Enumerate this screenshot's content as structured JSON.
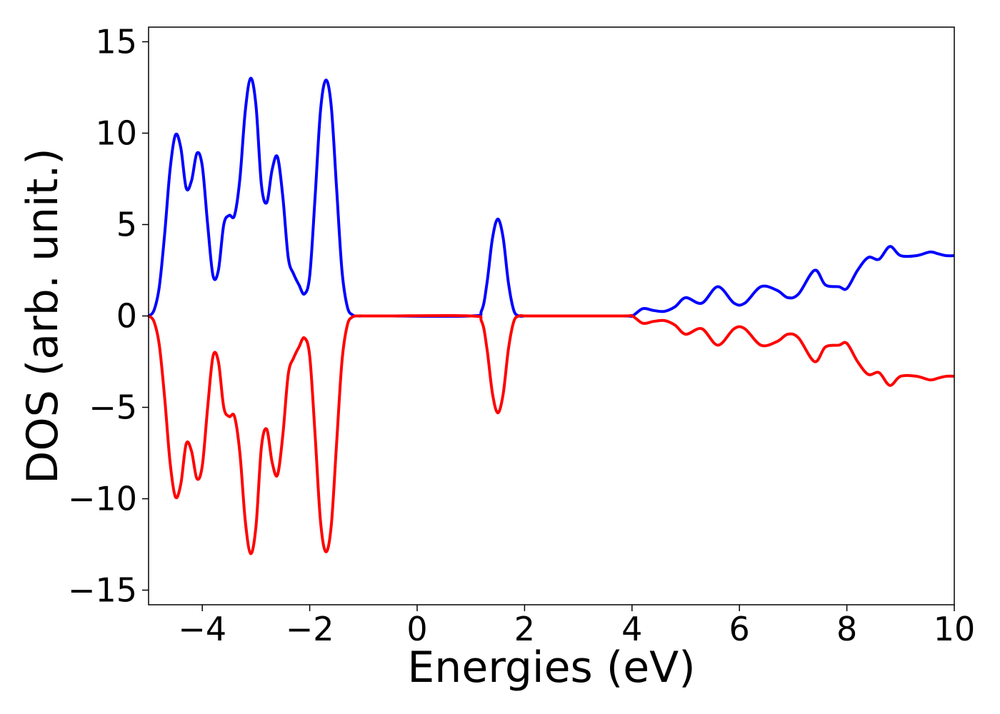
{
  "chart_data": {
    "type": "line",
    "xlabel": "Energies (eV)",
    "ylabel": "DOS (arb. unit.)",
    "xlim": [
      -5,
      10
    ],
    "ylim": [
      -15.8,
      15.8
    ],
    "xticks": [
      -4,
      -2,
      0,
      2,
      4,
      6,
      8,
      10
    ],
    "yticks": [
      -15,
      -10,
      -5,
      0,
      5,
      10,
      15
    ],
    "xtick_labels": [
      "−4",
      "−2",
      "0",
      "2",
      "4",
      "6",
      "8",
      "10"
    ],
    "ytick_labels": [
      "−15",
      "−10",
      "−5",
      "0",
      "5",
      "10",
      "15"
    ],
    "grid": false,
    "legend": "none",
    "series": [
      {
        "color": "#0000ff",
        "x": [
          -5.0,
          -4.9,
          -4.8,
          -4.7,
          -4.6,
          -4.5,
          -4.4,
          -4.3,
          -4.2,
          -4.1,
          -4.0,
          -3.9,
          -3.8,
          -3.7,
          -3.6,
          -3.5,
          -3.4,
          -3.3,
          -3.2,
          -3.1,
          -3.0,
          -2.9,
          -2.8,
          -2.7,
          -2.6,
          -2.5,
          -2.4,
          -2.3,
          -2.2,
          -2.1,
          -2.0,
          -1.9,
          -1.8,
          -1.7,
          -1.6,
          -1.5,
          -1.4,
          -1.3,
          -1.2,
          -1.1,
          -1.0,
          -0.9,
          -0.8,
          -0.7,
          -0.6,
          -0.5,
          1.0,
          1.2,
          1.3,
          1.4,
          1.5,
          1.6,
          1.7,
          1.8,
          1.9,
          2.0,
          2.1,
          2.2,
          3.8,
          4.0,
          4.2,
          4.4,
          4.6,
          4.8,
          5.0,
          5.3,
          5.6,
          5.9,
          6.1,
          6.4,
          6.7,
          6.9,
          7.1,
          7.4,
          7.6,
          7.85,
          8.0,
          8.2,
          8.4,
          8.6,
          8.8,
          9.0,
          9.3,
          9.55,
          9.7,
          9.85,
          10.0
        ],
        "y": [
          0.0,
          0.3,
          1.6,
          4.5,
          8.0,
          9.9,
          9.2,
          7.0,
          7.4,
          8.9,
          8.2,
          5.0,
          2.2,
          2.5,
          5.0,
          5.5,
          5.5,
          7.5,
          11.2,
          13.0,
          11.5,
          7.2,
          6.2,
          8.0,
          8.7,
          6.5,
          3.2,
          2.3,
          1.7,
          1.2,
          2.2,
          6.5,
          11.2,
          12.9,
          11.5,
          7.0,
          2.5,
          0.5,
          0.05,
          0.0,
          0.0,
          0.0,
          0.0,
          0.0,
          0.0,
          0.0,
          0.0,
          0.3,
          1.8,
          4.2,
          5.3,
          4.3,
          1.8,
          0.3,
          0.0,
          0.0,
          0.0,
          0.0,
          0.0,
          0.0,
          0.4,
          0.3,
          0.25,
          0.5,
          1.0,
          0.7,
          1.6,
          0.7,
          0.7,
          1.6,
          1.4,
          1.0,
          1.2,
          2.5,
          1.7,
          1.6,
          1.5,
          2.5,
          3.2,
          3.1,
          3.8,
          3.3,
          3.3,
          3.5,
          3.4,
          3.3,
          3.3
        ]
      },
      {
        "color": "#ff0000",
        "x": [
          -5.0,
          -4.9,
          -4.8,
          -4.7,
          -4.6,
          -4.5,
          -4.4,
          -4.3,
          -4.2,
          -4.1,
          -4.0,
          -3.9,
          -3.8,
          -3.7,
          -3.6,
          -3.5,
          -3.4,
          -3.3,
          -3.2,
          -3.1,
          -3.0,
          -2.9,
          -2.8,
          -2.7,
          -2.6,
          -2.5,
          -2.4,
          -2.3,
          -2.2,
          -2.1,
          -2.0,
          -1.9,
          -1.8,
          -1.7,
          -1.6,
          -1.5,
          -1.4,
          -1.3,
          -1.2,
          -1.1,
          -1.0,
          -0.9,
          -0.8,
          -0.7,
          -0.6,
          -0.5,
          1.0,
          1.2,
          1.3,
          1.4,
          1.5,
          1.6,
          1.7,
          1.8,
          1.9,
          2.0,
          2.1,
          2.2,
          3.8,
          4.0,
          4.2,
          4.4,
          4.6,
          4.8,
          5.0,
          5.3,
          5.6,
          5.9,
          6.1,
          6.4,
          6.7,
          6.9,
          7.1,
          7.4,
          7.6,
          7.85,
          8.0,
          8.2,
          8.4,
          8.6,
          8.8,
          9.0,
          9.3,
          9.55,
          9.7,
          9.85,
          10.0
        ],
        "y": [
          0.0,
          -0.3,
          -1.6,
          -4.5,
          -8.0,
          -9.9,
          -9.2,
          -7.0,
          -7.4,
          -8.9,
          -8.2,
          -5.0,
          -2.2,
          -2.5,
          -5.0,
          -5.5,
          -5.5,
          -7.5,
          -11.2,
          -13.0,
          -11.5,
          -7.2,
          -6.2,
          -8.0,
          -8.7,
          -6.5,
          -3.2,
          -2.3,
          -1.7,
          -1.2,
          -2.2,
          -6.5,
          -11.2,
          -12.9,
          -11.5,
          -7.0,
          -2.5,
          -0.5,
          -0.05,
          0.0,
          0.0,
          0.0,
          0.0,
          0.0,
          0.0,
          0.0,
          0.0,
          -0.3,
          -1.8,
          -4.2,
          -5.3,
          -4.3,
          -1.8,
          -0.3,
          0.0,
          0.0,
          0.0,
          0.0,
          0.0,
          0.0,
          -0.4,
          -0.3,
          -0.25,
          -0.5,
          -1.0,
          -0.7,
          -1.6,
          -0.7,
          -0.7,
          -1.6,
          -1.4,
          -1.0,
          -1.2,
          -2.5,
          -1.7,
          -1.6,
          -1.5,
          -2.5,
          -3.2,
          -3.1,
          -3.8,
          -3.3,
          -3.3,
          -3.5,
          -3.4,
          -3.3,
          -3.3
        ]
      }
    ]
  }
}
